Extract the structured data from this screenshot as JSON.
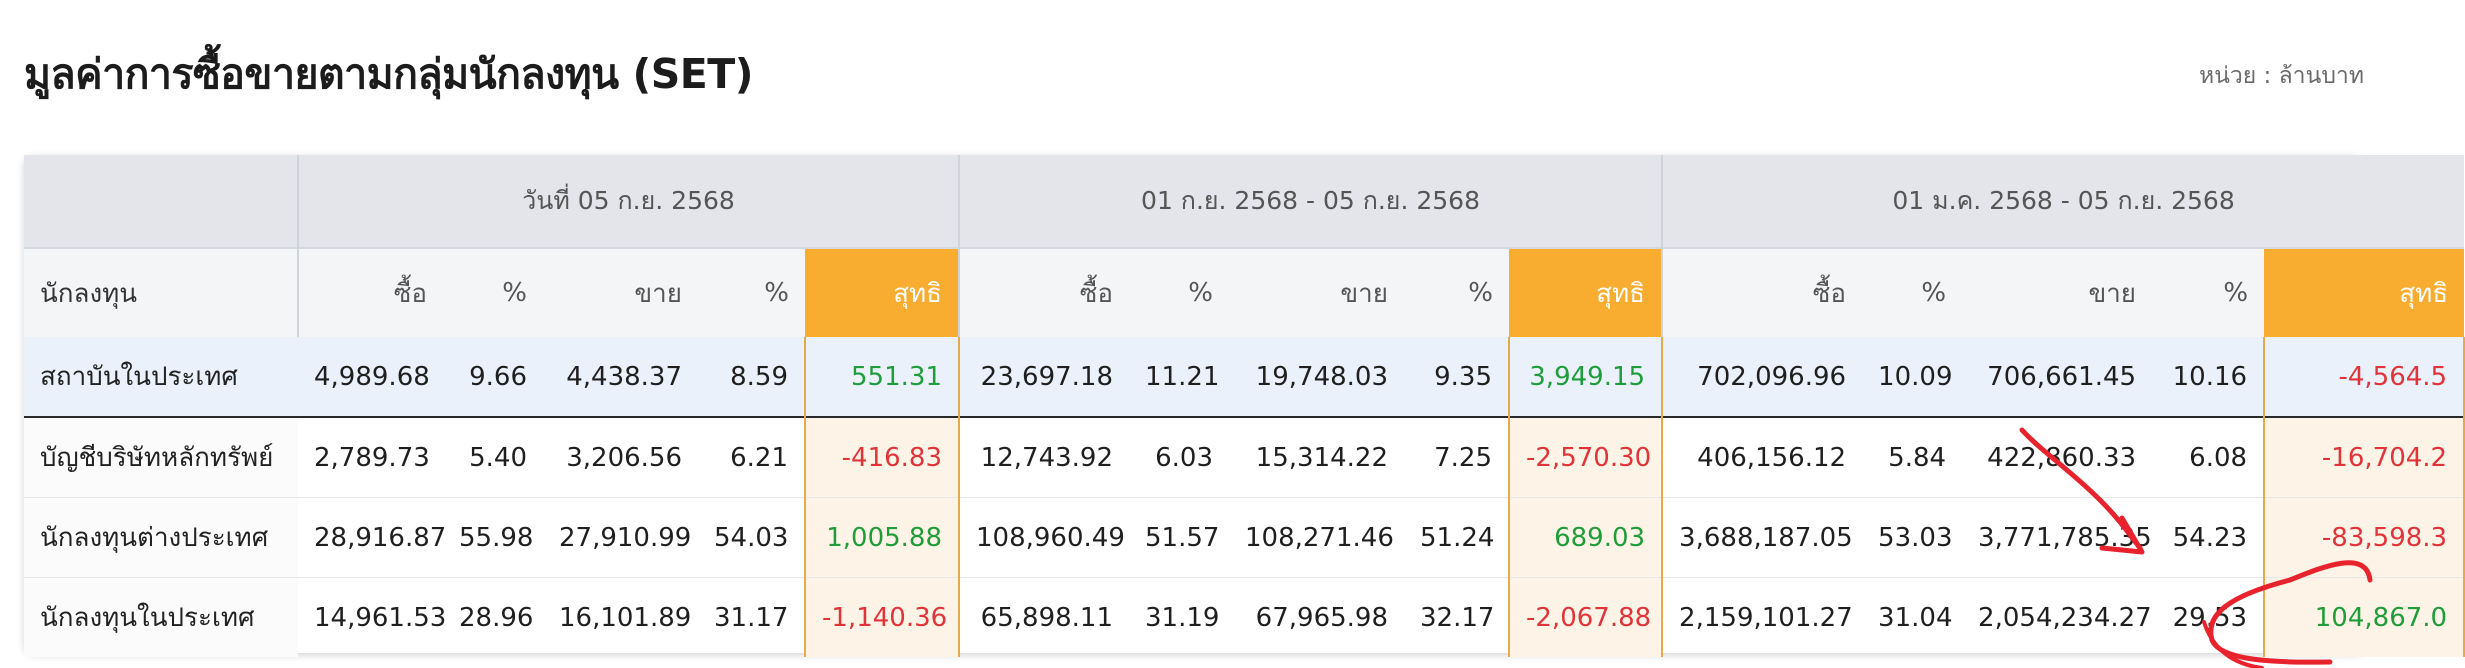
{
  "header": {
    "title": "มูลค่าการซื้อขายตามกลุ่มนักลงทุน (SET)",
    "unit": "หน่วย : ล้านบาท"
  },
  "table": {
    "groups": [
      "วันที่ 05 ก.ย. 2568",
      "01 ก.ย. 2568 - 05 ก.ย. 2568",
      "01 ม.ค. 2568 - 05 ก.ย. 2568"
    ],
    "investor_header": "นักลงทุน",
    "sub_headers": {
      "buy": "ซื้อ",
      "buy_pct": "%",
      "sell": "ขาย",
      "sell_pct": "%",
      "net": "สุทธิ"
    },
    "rows": [
      {
        "name": "สถาบันในประเทศ",
        "g": [
          [
            "4,989.68",
            "9.66",
            "4,438.37",
            "8.59",
            "551.31"
          ],
          [
            "23,697.18",
            "11.21",
            "19,748.03",
            "9.35",
            "3,949.15"
          ],
          [
            "702,096.96",
            "10.09",
            "706,661.45",
            "10.16",
            "-4,564.5"
          ]
        ]
      },
      {
        "name": "บัญชีบริษัทหลักทรัพย์",
        "g": [
          [
            "2,789.73",
            "5.40",
            "3,206.56",
            "6.21",
            "-416.83"
          ],
          [
            "12,743.92",
            "6.03",
            "15,314.22",
            "7.25",
            "-2,570.30"
          ],
          [
            "406,156.12",
            "5.84",
            "422,860.33",
            "6.08",
            "-16,704.2"
          ]
        ]
      },
      {
        "name": "นักลงทุนต่างประเทศ",
        "g": [
          [
            "28,916.87",
            "55.98",
            "27,910.99",
            "54.03",
            "1,005.88"
          ],
          [
            "108,960.49",
            "51.57",
            "108,271.46",
            "51.24",
            "689.03"
          ],
          [
            "3,688,187.05",
            "53.03",
            "3,771,785.35",
            "54.23",
            "-83,598.3"
          ]
        ]
      },
      {
        "name": "นักลงทุนในประเทศ",
        "g": [
          [
            "14,961.53",
            "28.96",
            "16,101.89",
            "31.17",
            "-1,140.36"
          ],
          [
            "65,898.11",
            "31.19",
            "67,965.98",
            "32.17",
            "-2,067.88"
          ],
          [
            "2,159,101.27",
            "31.04",
            "2,054,234.27",
            "29.53",
            "104,867.0"
          ]
        ]
      }
    ]
  },
  "colors": {
    "net_header": "#f8ad31",
    "positive": "#1f9d3a",
    "negative": "#e0343a",
    "annotation": "#e8232e"
  }
}
